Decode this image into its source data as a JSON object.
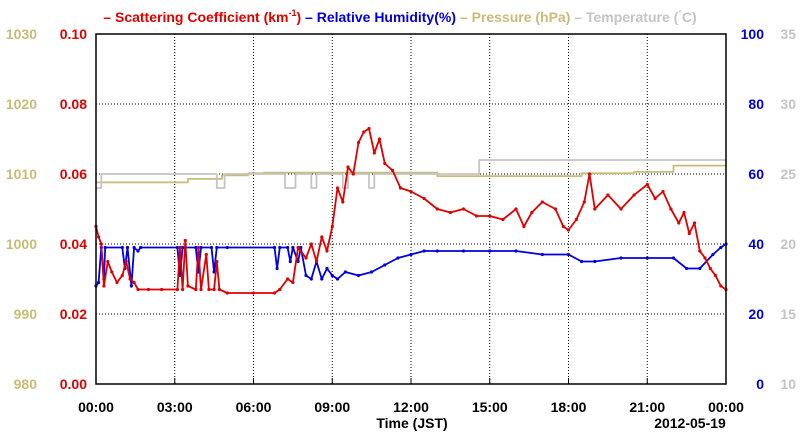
{
  "chart_data": {
    "type": "line",
    "legend": [
      {
        "prefix": "– ",
        "label": "Scattering Coefficient (km",
        "sup": "-1",
        "suffix": ")",
        "color": "#e00000"
      },
      {
        "prefix": " – ",
        "label": "Relative Humidity(%)",
        "color": "#0000dd"
      },
      {
        "prefix": " – ",
        "label": "Pressure (hPa)",
        "color": "#c8bc78"
      },
      {
        "prefix": " – ",
        "label": "Temperature (",
        "sup": "°",
        "suffix": "C)",
        "color": "#c4c4c4"
      }
    ],
    "xlabel": "Time (JST)",
    "date_label": "2012-05-19",
    "x_ticks": [
      "00:00",
      "03:00",
      "06:00",
      "09:00",
      "12:00",
      "15:00",
      "18:00",
      "21:00",
      "00:00"
    ],
    "xlim_hours": [
      0,
      24
    ],
    "axes": {
      "pressure": {
        "ticks": [
          "980",
          "990",
          "1000",
          "1010",
          "1020",
          "1030"
        ],
        "ylim": [
          980,
          1030
        ],
        "color": "#c8bc78"
      },
      "scattering": {
        "ticks": [
          "0.00",
          "0.02",
          "0.04",
          "0.06",
          "0.08",
          "0.10"
        ],
        "ylim": [
          0,
          0.1
        ],
        "color": "#e00000"
      },
      "humidity": {
        "ticks": [
          "0",
          "20",
          "40",
          "60",
          "80",
          "100"
        ],
        "ylim": [
          0,
          100
        ],
        "color": "#0000dd"
      },
      "temperature": {
        "ticks": [
          "10",
          "15",
          "20",
          "25",
          "30",
          "35"
        ],
        "ylim": [
          10,
          35
        ],
        "color": "#c4c4c4"
      }
    },
    "grid": true,
    "series": [
      {
        "name": "Pressure (hPa)",
        "axis": "pressure",
        "color": "#c8bc78",
        "points": [
          [
            0,
            1008.8
          ],
          [
            3.5,
            1008.8
          ],
          [
            3.5,
            1009.3
          ],
          [
            4.8,
            1009.3
          ],
          [
            4.8,
            1009.8
          ],
          [
            5.8,
            1009.8
          ],
          [
            5.8,
            1010.1
          ],
          [
            6.4,
            1010.1
          ],
          [
            6.4,
            1010.2
          ],
          [
            13,
            1010.2
          ],
          [
            13,
            1009.7
          ],
          [
            18.5,
            1009.7
          ],
          [
            18.5,
            1010.1
          ],
          [
            20.5,
            1010.1
          ],
          [
            20.5,
            1010.3
          ],
          [
            22,
            1010.3
          ],
          [
            22,
            1011.2
          ],
          [
            24,
            1011.2
          ]
        ]
      },
      {
        "name": "Temperature (°C)",
        "axis": "temperature",
        "color": "#c4c4c4",
        "points": [
          [
            0,
            24
          ],
          [
            0.2,
            24
          ],
          [
            0.2,
            25
          ],
          [
            4.6,
            25
          ],
          [
            4.6,
            24
          ],
          [
            4.9,
            24
          ],
          [
            4.9,
            25
          ],
          [
            7.2,
            25
          ],
          [
            7.2,
            24
          ],
          [
            7.6,
            24
          ],
          [
            7.6,
            25
          ],
          [
            8.2,
            25
          ],
          [
            8.2,
            24
          ],
          [
            8.4,
            24
          ],
          [
            8.4,
            25
          ],
          [
            9.4,
            25
          ],
          [
            9.4,
            24
          ],
          [
            9.6,
            24
          ],
          [
            9.6,
            25
          ],
          [
            10.4,
            25
          ],
          [
            10.4,
            24
          ],
          [
            10.6,
            24
          ],
          [
            10.6,
            25
          ],
          [
            14.6,
            25
          ],
          [
            14.6,
            26
          ],
          [
            24,
            26
          ]
        ]
      },
      {
        "name": "Relative Humidity(%)",
        "axis": "humidity",
        "color": "#0000dd",
        "points": [
          [
            0,
            28
          ],
          [
            0.1,
            29
          ],
          [
            0.2,
            39
          ],
          [
            0.3,
            30
          ],
          [
            0.35,
            39
          ],
          [
            1,
            39
          ],
          [
            1.1,
            33
          ],
          [
            1.2,
            39
          ],
          [
            1.35,
            28
          ],
          [
            1.45,
            39
          ],
          [
            1.6,
            38
          ],
          [
            1.7,
            39
          ],
          [
            3.1,
            39
          ],
          [
            3.2,
            31
          ],
          [
            3.3,
            39
          ],
          [
            3.8,
            39
          ],
          [
            3.9,
            32
          ],
          [
            4,
            39
          ],
          [
            4.4,
            39
          ],
          [
            4.5,
            32
          ],
          [
            4.6,
            39
          ],
          [
            5,
            39
          ],
          [
            6.8,
            39
          ],
          [
            6.9,
            33
          ],
          [
            7,
            39
          ],
          [
            7.3,
            39
          ],
          [
            7.4,
            35
          ],
          [
            7.5,
            39
          ],
          [
            7.7,
            35
          ],
          [
            7.8,
            39
          ],
          [
            8,
            31
          ],
          [
            8.2,
            30
          ],
          [
            8.4,
            35
          ],
          [
            8.6,
            30
          ],
          [
            8.8,
            33
          ],
          [
            9,
            31
          ],
          [
            9.2,
            30
          ],
          [
            9.5,
            32
          ],
          [
            10,
            31
          ],
          [
            10.5,
            32
          ],
          [
            11,
            34
          ],
          [
            11.5,
            36
          ],
          [
            12,
            37
          ],
          [
            12.5,
            38
          ],
          [
            13,
            38
          ],
          [
            14,
            38
          ],
          [
            15,
            38
          ],
          [
            16,
            38
          ],
          [
            17,
            37
          ],
          [
            18,
            37
          ],
          [
            18.5,
            35
          ],
          [
            19,
            35
          ],
          [
            20,
            36
          ],
          [
            21,
            36
          ],
          [
            22,
            36
          ],
          [
            22.5,
            33
          ],
          [
            23,
            33
          ],
          [
            23.5,
            37
          ],
          [
            23.8,
            39
          ],
          [
            24,
            40
          ]
        ]
      },
      {
        "name": "Scattering Coefficient (km-1)",
        "axis": "scattering",
        "color": "#e00000",
        "points": [
          [
            0,
            0.045
          ],
          [
            0.1,
            0.042
          ],
          [
            0.2,
            0.04
          ],
          [
            0.3,
            0.028
          ],
          [
            0.45,
            0.035
          ],
          [
            0.6,
            0.032
          ],
          [
            0.8,
            0.029
          ],
          [
            1,
            0.031
          ],
          [
            1.15,
            0.035
          ],
          [
            1.3,
            0.03
          ],
          [
            1.45,
            0.029
          ],
          [
            1.6,
            0.027
          ],
          [
            2,
            0.027
          ],
          [
            2.5,
            0.027
          ],
          [
            3.1,
            0.027
          ],
          [
            3.2,
            0.039
          ],
          [
            3.3,
            0.027
          ],
          [
            3.4,
            0.041
          ],
          [
            3.5,
            0.028
          ],
          [
            3.8,
            0.027
          ],
          [
            3.9,
            0.039
          ],
          [
            4,
            0.027
          ],
          [
            4.2,
            0.037
          ],
          [
            4.3,
            0.027
          ],
          [
            4.5,
            0.027
          ],
          [
            4.6,
            0.035
          ],
          [
            4.7,
            0.027
          ],
          [
            5,
            0.026
          ],
          [
            6,
            0.026
          ],
          [
            6.8,
            0.026
          ],
          [
            7,
            0.027
          ],
          [
            7.3,
            0.03
          ],
          [
            7.5,
            0.029
          ],
          [
            7.7,
            0.039
          ],
          [
            8,
            0.036
          ],
          [
            8.2,
            0.04
          ],
          [
            8.4,
            0.035
          ],
          [
            8.6,
            0.042
          ],
          [
            8.8,
            0.038
          ],
          [
            9,
            0.045
          ],
          [
            9.2,
            0.056
          ],
          [
            9.4,
            0.052
          ],
          [
            9.6,
            0.062
          ],
          [
            9.8,
            0.06
          ],
          [
            10,
            0.069
          ],
          [
            10.2,
            0.072
          ],
          [
            10.4,
            0.073
          ],
          [
            10.6,
            0.066
          ],
          [
            10.8,
            0.07
          ],
          [
            11,
            0.063
          ],
          [
            11.3,
            0.061
          ],
          [
            11.6,
            0.056
          ],
          [
            12,
            0.055
          ],
          [
            12.5,
            0.053
          ],
          [
            13,
            0.05
          ],
          [
            13.5,
            0.049
          ],
          [
            14,
            0.05
          ],
          [
            14.5,
            0.048
          ],
          [
            15,
            0.048
          ],
          [
            15.5,
            0.047
          ],
          [
            16,
            0.05
          ],
          [
            16.3,
            0.045
          ],
          [
            16.6,
            0.049
          ],
          [
            17,
            0.052
          ],
          [
            17.5,
            0.05
          ],
          [
            17.8,
            0.045
          ],
          [
            18,
            0.044
          ],
          [
            18.3,
            0.047
          ],
          [
            18.6,
            0.052
          ],
          [
            18.8,
            0.06
          ],
          [
            19,
            0.05
          ],
          [
            19.5,
            0.054
          ],
          [
            20,
            0.05
          ],
          [
            20.5,
            0.054
          ],
          [
            21,
            0.057
          ],
          [
            21.3,
            0.053
          ],
          [
            21.6,
            0.055
          ],
          [
            21.9,
            0.05
          ],
          [
            22.2,
            0.046
          ],
          [
            22.4,
            0.049
          ],
          [
            22.6,
            0.043
          ],
          [
            22.8,
            0.046
          ],
          [
            23,
            0.038
          ],
          [
            23.2,
            0.036
          ],
          [
            23.4,
            0.033
          ],
          [
            23.6,
            0.031
          ],
          [
            23.8,
            0.028
          ],
          [
            24,
            0.027
          ]
        ]
      }
    ]
  }
}
